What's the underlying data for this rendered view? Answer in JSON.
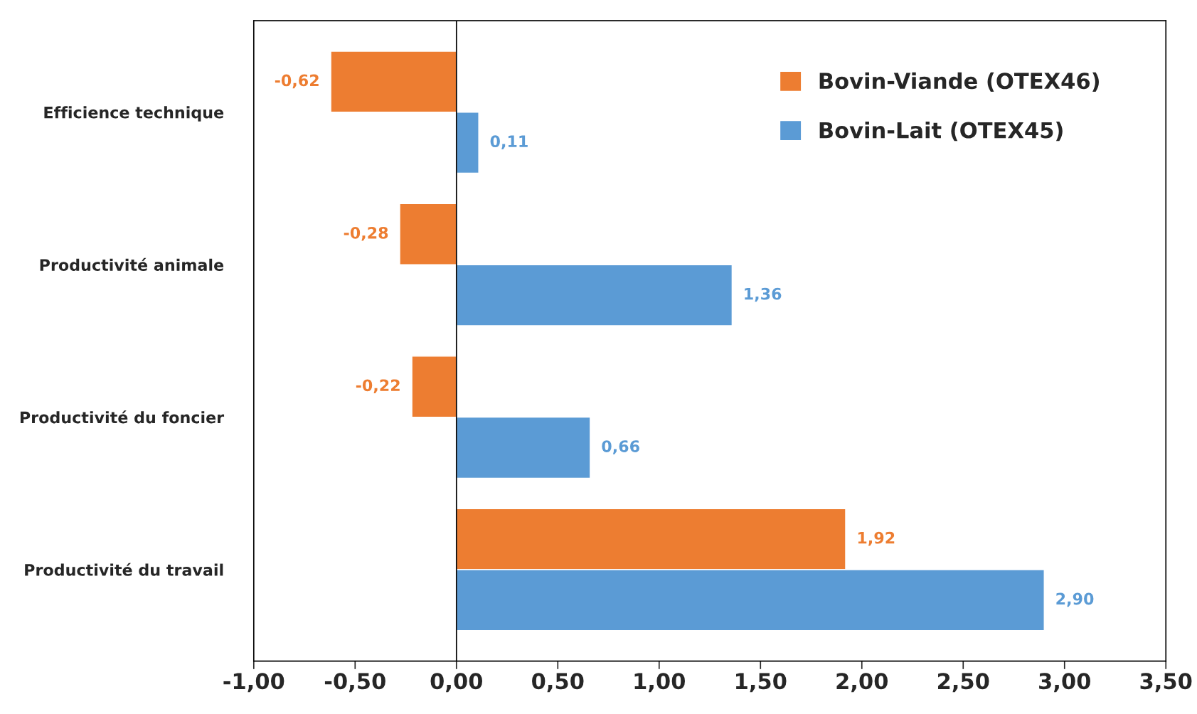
{
  "chart_data": {
    "type": "bar",
    "orientation": "horizontal",
    "categories": [
      "Efficience technique",
      "Productivité animale",
      "Productivité du foncier",
      "Productivité du travail"
    ],
    "series": [
      {
        "name": "Bovin-Viande (OTEX46)",
        "color": "#ed7d31",
        "values": [
          -0.62,
          -0.28,
          -0.22,
          1.92
        ],
        "value_labels": [
          "-0,62",
          "-0,28",
          "-0,22",
          "1,92"
        ]
      },
      {
        "name": "Bovin-Lait (OTEX45)",
        "color": "#5b9bd5",
        "values": [
          0.11,
          1.36,
          0.66,
          2.9
        ],
        "value_labels": [
          "0,11",
          "1,36",
          "0,66",
          "2,90"
        ]
      }
    ],
    "xlim": [
      -1,
      3.5
    ],
    "xticks": [
      {
        "value": -1,
        "label": "-1,00"
      },
      {
        "value": -0.5,
        "label": "-0,50"
      },
      {
        "value": 0,
        "label": "0,00"
      },
      {
        "value": 0.5,
        "label": "0,50"
      },
      {
        "value": 1,
        "label": "1,00"
      },
      {
        "value": 1.5,
        "label": "1,50"
      },
      {
        "value": 2,
        "label": "2,00"
      },
      {
        "value": 2.5,
        "label": "2,50"
      },
      {
        "value": 3,
        "label": "3,00"
      },
      {
        "value": 3.5,
        "label": "3,50"
      }
    ],
    "ref_lines": [
      {
        "axis": "x",
        "value": 0,
        "color": "#000000"
      }
    ],
    "grid": false,
    "legend": "top right"
  }
}
